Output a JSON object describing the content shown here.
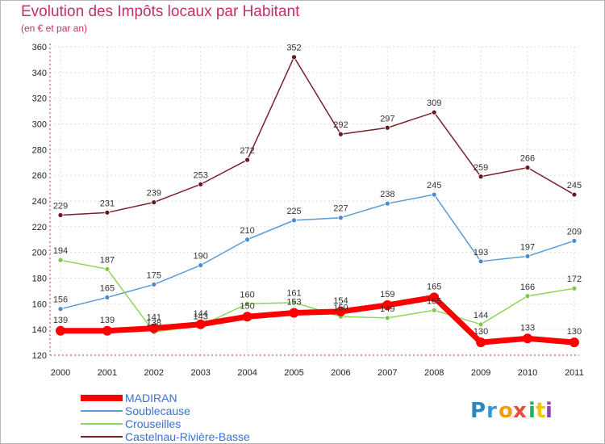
{
  "chart_data": {
    "type": "line",
    "title": "Evolution des Impôts locaux par Habitant",
    "subtitle": "(en € et par an)",
    "categories": [
      "2000",
      "2001",
      "2002",
      "2003",
      "2004",
      "2005",
      "2006",
      "2007",
      "2008",
      "2009",
      "2010",
      "2011"
    ],
    "ylim": [
      120,
      360
    ],
    "yticks": [
      120,
      140,
      160,
      180,
      200,
      220,
      240,
      260,
      280,
      300,
      320,
      340,
      360
    ],
    "series": [
      {
        "name": "Castelnau-Rivière-Basse",
        "color": "#7a1f2b",
        "marker": "#6b1620",
        "width": 1.5,
        "values": [
          229,
          231,
          239,
          253,
          272,
          352,
          292,
          297,
          309,
          259,
          266,
          245
        ]
      },
      {
        "name": "Soublecause",
        "color": "#5b9bd5",
        "marker": "#4a8ad0",
        "width": 1.5,
        "values": [
          156,
          165,
          175,
          190,
          210,
          225,
          227,
          238,
          245,
          193,
          197,
          209
        ]
      },
      {
        "name": "Crouseilles",
        "color": "#8ed65a",
        "marker": "#7cc84a",
        "width": 1.5,
        "values": [
          194,
          187,
          138,
          143,
          160,
          161,
          150,
          149,
          155,
          144,
          166,
          172
        ]
      },
      {
        "name": "MADIRAN",
        "color": "#ff0000",
        "marker": "#ff0000",
        "width": 7,
        "values": [
          139,
          139,
          141,
          144,
          150,
          153,
          154,
          159,
          165,
          130,
          133,
          130
        ]
      }
    ],
    "legend": [
      "MADIRAN",
      "Soublecause",
      "Crouseilles",
      "Castelnau-Rivière-Basse"
    ]
  },
  "logo": {
    "text": "Proxiti"
  }
}
